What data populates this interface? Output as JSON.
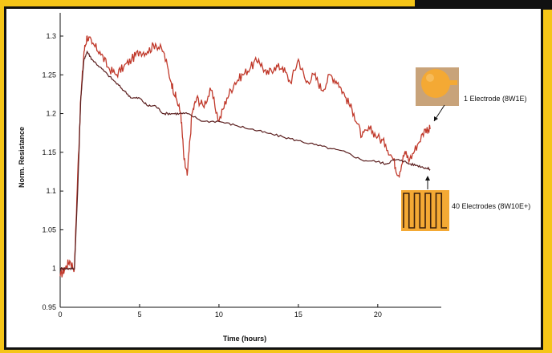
{
  "chart_data": {
    "type": "line",
    "title": "",
    "xlabel": "Time (hours)",
    "ylabel": "Norm. Resistance",
    "xlim": [
      0,
      24
    ],
    "ylim": [
      0.95,
      1.33
    ],
    "x_ticks": [
      0,
      5,
      10,
      15,
      20
    ],
    "y_ticks": [
      0.95,
      1.0,
      1.05,
      1.1,
      1.15,
      1.2,
      1.25,
      1.3
    ],
    "y_tick_labels": [
      "0.95",
      "1",
      "1.05",
      "1.1",
      "1.15",
      "1.2",
      "1.25",
      "1.3"
    ],
    "grid": false,
    "legend": "none",
    "series": [
      {
        "name": "1 Electrode (8W1E)",
        "color": "#c0392b",
        "x": [
          0.0,
          0.3,
          0.6,
          0.9,
          1.1,
          1.3,
          1.5,
          1.7,
          2.0,
          2.5,
          3.0,
          3.5,
          4.0,
          4.5,
          5.0,
          5.5,
          6.0,
          6.5,
          7.0,
          7.3,
          7.6,
          7.8,
          8.0,
          8.3,
          8.6,
          9.0,
          9.5,
          10.0,
          10.5,
          11.0,
          11.5,
          12.0,
          12.5,
          13.0,
          13.5,
          14.0,
          14.5,
          15.0,
          15.5,
          16.0,
          16.5,
          17.0,
          17.5,
          18.0,
          18.5,
          19.0,
          19.5,
          20.0,
          20.5,
          21.0,
          21.3,
          21.7,
          22.0,
          22.5,
          23.0,
          23.3
        ],
        "y": [
          0.99,
          1.0,
          1.01,
          1.0,
          1.12,
          1.22,
          1.28,
          1.3,
          1.29,
          1.28,
          1.26,
          1.25,
          1.26,
          1.27,
          1.28,
          1.28,
          1.29,
          1.28,
          1.24,
          1.22,
          1.2,
          1.14,
          1.12,
          1.2,
          1.22,
          1.21,
          1.23,
          1.19,
          1.22,
          1.24,
          1.25,
          1.26,
          1.27,
          1.25,
          1.26,
          1.26,
          1.24,
          1.27,
          1.24,
          1.25,
          1.23,
          1.25,
          1.24,
          1.22,
          1.2,
          1.17,
          1.18,
          1.17,
          1.16,
          1.14,
          1.12,
          1.15,
          1.14,
          1.16,
          1.18,
          1.18
        ]
      },
      {
        "name": "40 Electrodes (8W10E+)",
        "color": "#5a1e1e",
        "x": [
          0.0,
          0.3,
          0.6,
          0.9,
          1.1,
          1.3,
          1.5,
          1.7,
          2.0,
          2.5,
          3.0,
          3.5,
          4.0,
          4.5,
          5.0,
          5.5,
          6.0,
          6.5,
          7.0,
          7.5,
          8.0,
          9.0,
          10.0,
          11.0,
          12.0,
          13.0,
          14.0,
          15.0,
          16.0,
          17.0,
          18.0,
          19.0,
          20.0,
          20.5,
          21.0,
          21.5,
          22.0,
          22.5,
          23.0,
          23.3
        ],
        "y": [
          1.0,
          1.0,
          1.0,
          1.0,
          1.1,
          1.22,
          1.27,
          1.28,
          1.27,
          1.26,
          1.25,
          1.24,
          1.23,
          1.22,
          1.22,
          1.21,
          1.21,
          1.2,
          1.2,
          1.2,
          1.2,
          1.19,
          1.19,
          1.185,
          1.18,
          1.175,
          1.17,
          1.165,
          1.16,
          1.155,
          1.15,
          1.14,
          1.138,
          1.135,
          1.14,
          1.14,
          1.135,
          1.133,
          1.13,
          1.128
        ]
      }
    ],
    "annotations": [
      {
        "text": "1 Electrode (8W1E)"
      },
      {
        "text": "40 Electrodes (8W10E+)"
      }
    ]
  },
  "colors": {
    "page_background": "#f5c518",
    "frame_border": "#111111",
    "plot_background": "#ffffff",
    "inset_orange": "#f4a934",
    "inset_tan": "#c8a37a"
  }
}
